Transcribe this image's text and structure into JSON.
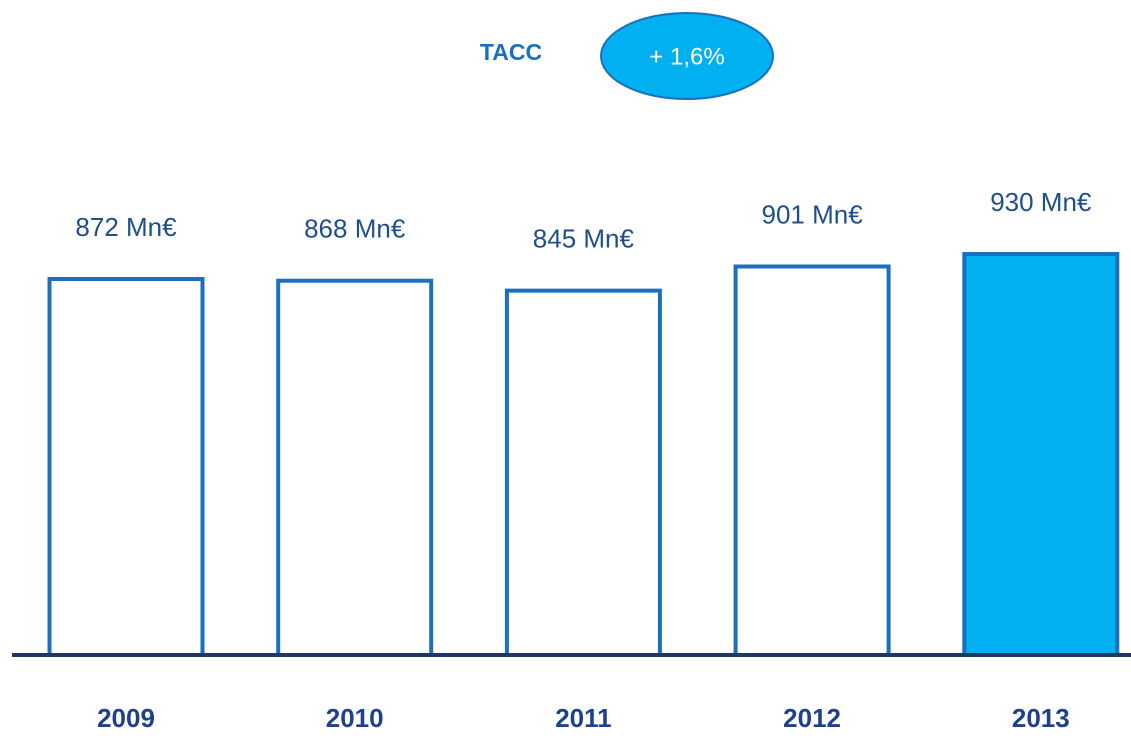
{
  "chart_data": {
    "type": "bar",
    "annotations": [
      "TACC",
      "+ 1,6%"
    ],
    "categories": [
      "2009",
      "2010",
      "2011",
      "2012",
      "2013"
    ],
    "values": [
      872,
      868,
      845,
      901,
      930
    ],
    "value_labels": [
      "872 Mn€",
      "868 Mn€",
      "845 Mn€",
      "901 Mn€",
      "930 Mn€"
    ],
    "colors": [
      "#ffffff",
      "#ffffff",
      "#ffffff",
      "#ffffff",
      "#00b0f0"
    ],
    "edge_color": "#1a6fbf"
  }
}
